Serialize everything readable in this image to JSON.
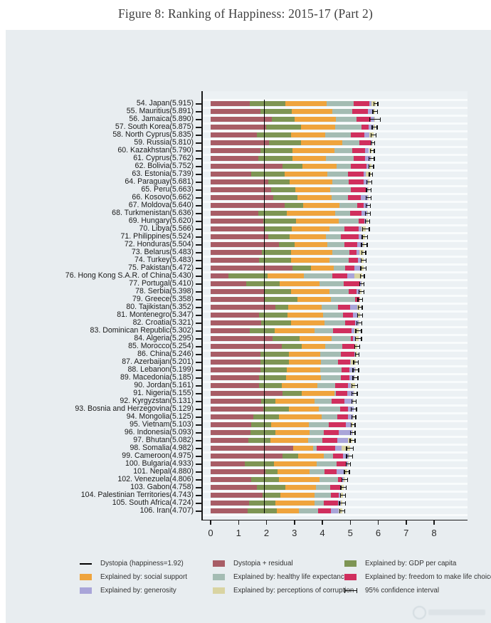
{
  "figure": {
    "title": "Figure 8: Ranking of Happiness: 2015-17 (Part 2)"
  },
  "chart_data": {
    "type": "bar",
    "orientation": "horizontal",
    "stacked": true,
    "title": "Figure 8: Ranking of Happiness: 2015-17 (Part 2)",
    "xlabel": "",
    "ylabel": "",
    "xlim": [
      0,
      8
    ],
    "x_ticks": [
      0,
      1,
      2,
      3,
      4,
      5,
      6,
      7,
      8
    ],
    "grid": "horizontal-row-stripes",
    "legend_position": "bottom",
    "dystopia_value": 1.92,
    "segment_names": [
      "Dystopia + residual",
      "Explained by: GDP per capita",
      "Explained by: social support",
      "Explained by: healthy life expectancy",
      "Explained by: freedom to make life choices",
      "Explained by: generosity",
      "Explained by: perceptions of corruption"
    ],
    "segment_colors": [
      "#a85d66",
      "#7e9554",
      "#efa43d",
      "#a4bcb3",
      "#d02f5e",
      "#a9a5d9",
      "#d9d4a2"
    ],
    "legend": [
      {
        "type": "line",
        "color": "#000000",
        "label": "Dystopia (happiness=1.92)"
      },
      {
        "type": "box",
        "color": "#a85d66",
        "label": "Dystopia + residual"
      },
      {
        "type": "box",
        "color": "#7e9554",
        "label": "Explained by: GDP per capita"
      },
      {
        "type": "box",
        "color": "#efa43d",
        "label": "Explained by: social support"
      },
      {
        "type": "box",
        "color": "#a4bcb3",
        "label": "Explained by: healthy life expectancy"
      },
      {
        "type": "box",
        "color": "#d02f5e",
        "label": "Explained by: freedom to make life choices"
      },
      {
        "type": "box",
        "color": "#a9a5d9",
        "label": "Explained by: generosity"
      },
      {
        "type": "box",
        "color": "#d9d4a2",
        "label": "Explained by: perceptions of corruption"
      },
      {
        "type": "ci",
        "color": "#111111",
        "label": "95% confidence interval"
      }
    ],
    "countries": [
      {
        "label": "54. Japan(5.915)",
        "total": 5.915,
        "segments": [
          1.389,
          1.294,
          1.462,
          0.988,
          0.553,
          0.079,
          0.15
        ],
        "ci": 0.07
      },
      {
        "label": "55. Mauritius(5.891)",
        "total": 5.891,
        "segments": [
          1.774,
          1.142,
          1.448,
          0.71,
          0.555,
          0.197,
          0.065
        ],
        "ci": 0.08
      },
      {
        "label": "56. Jamaica(5.890)",
        "total": 5.89,
        "segments": [
          2.184,
          0.819,
          1.493,
          0.716,
          0.522,
          0.128,
          0.028
        ],
        "ci": 0.19
      },
      {
        "label": "57. South Korea(5.875)",
        "total": 5.875,
        "segments": [
          1.98,
          1.266,
          1.204,
          0.955,
          0.244,
          0.175,
          0.051
        ],
        "ci": 0.09
      },
      {
        "label": "58. North Cyprus(5.835)",
        "total": 5.835,
        "segments": [
          1.658,
          1.229,
          1.211,
          0.909,
          0.495,
          0.179,
          0.154
        ],
        "ci": 0.09
      },
      {
        "label": "59. Russia(5.810)",
        "total": 5.81,
        "segments": [
          2.092,
          1.151,
          1.479,
          0.599,
          0.399,
          0.065,
          0.025
        ],
        "ci": 0.06
      },
      {
        "label": "60. Kazakhstan(5.790)",
        "total": 5.79,
        "segments": [
          1.777,
          1.143,
          1.516,
          0.631,
          0.454,
          0.148,
          0.121
        ],
        "ci": 0.07
      },
      {
        "label": "61. Cyprus(5.762)",
        "total": 5.762,
        "segments": [
          1.713,
          1.222,
          1.191,
          0.999,
          0.406,
          0.19,
          0.041
        ],
        "ci": 0.1
      },
      {
        "label": "62. Bolivia(5.752)",
        "total": 5.752,
        "segments": [
          2.575,
          0.714,
          1.224,
          0.508,
          0.571,
          0.097,
          0.063
        ],
        "ci": 0.08
      },
      {
        "label": "63. Estonia(5.739)",
        "total": 5.739,
        "segments": [
          1.457,
          1.2,
          1.532,
          0.737,
          0.553,
          0.086,
          0.174
        ],
        "ci": 0.06
      },
      {
        "label": "64. Paraguay(5.681)",
        "total": 5.681,
        "segments": [
          2.073,
          0.755,
          1.521,
          0.604,
          0.52,
          0.161,
          0.047
        ],
        "ci": 0.09
      },
      {
        "label": "65. Peru(5.663)",
        "total": 5.663,
        "segments": [
          2.173,
          0.863,
          1.249,
          0.735,
          0.53,
          0.083,
          0.03
        ],
        "ci": 0.08
      },
      {
        "label": "66. Kosovo(5.662)",
        "total": 5.662,
        "segments": [
          2.254,
          0.855,
          1.23,
          0.578,
          0.448,
          0.274,
          0.023
        ],
        "ci": 0.09
      },
      {
        "label": "67. Moldova(5.640)",
        "total": 5.64,
        "segments": [
          2.659,
          0.657,
          1.301,
          0.62,
          0.232,
          0.171,
          0.0
        ],
        "ci": 0.08
      },
      {
        "label": "68. Turkmenistan(5.636)",
        "total": 5.636,
        "segments": [
          1.704,
          1.024,
          1.719,
          0.541,
          0.418,
          0.202,
          0.028
        ],
        "ci": 0.09
      },
      {
        "label": "69. Hungary(5.620)",
        "total": 5.62,
        "segments": [
          1.887,
          1.171,
          1.536,
          0.71,
          0.199,
          0.081,
          0.036
        ],
        "ci": 0.08
      },
      {
        "label": "70. Libya(5.566)",
        "total": 5.566,
        "segments": [
          1.909,
          0.985,
          1.35,
          0.553,
          0.501,
          0.116,
          0.152
        ],
        "ci": 0.12
      },
      {
        "label": "71. Philippines(5.524)",
        "total": 5.524,
        "segments": [
          2.075,
          0.746,
          1.312,
          0.542,
          0.613,
          0.132,
          0.104
        ],
        "ci": 0.1
      },
      {
        "label": "72. Honduras(5.504)",
        "total": 5.504,
        "segments": [
          2.439,
          0.557,
          1.171,
          0.619,
          0.471,
          0.191,
          0.056
        ],
        "ci": 0.1
      },
      {
        "label": "73. Belarus(5.483)",
        "total": 5.483,
        "segments": [
          1.83,
          1.039,
          1.487,
          0.622,
          0.236,
          0.117,
          0.152
        ],
        "ci": 0.07
      },
      {
        "label": "74. Turkey(5.483)",
        "total": 5.483,
        "segments": [
          1.73,
          1.148,
          1.38,
          0.686,
          0.324,
          0.106,
          0.109
        ],
        "ci": 0.09
      },
      {
        "label": "75. Pakistan(5.472)",
        "total": 5.472,
        "segments": [
          2.938,
          0.652,
          0.81,
          0.424,
          0.334,
          0.216,
          0.098
        ],
        "ci": 0.1
      },
      {
        "label": "76. Hong Kong S.A.R. of China(5.430)",
        "total": 5.43,
        "segments": [
          0.644,
          1.405,
          1.29,
          1.03,
          0.524,
          0.246,
          0.291
        ],
        "ci": 0.07
      },
      {
        "label": "77. Portugal(5.410)",
        "total": 5.41,
        "segments": [
          1.275,
          1.188,
          1.429,
          0.884,
          0.562,
          0.055,
          0.017
        ],
        "ci": 0.08
      },
      {
        "label": "78. Serbia(5.398)",
        "total": 5.398,
        "segments": [
          1.904,
          0.975,
          1.369,
          0.685,
          0.288,
          0.134,
          0.043
        ],
        "ci": 0.09
      },
      {
        "label": "79. Greece(5.358)",
        "total": 5.358,
        "segments": [
          1.948,
          1.154,
          1.202,
          0.879,
          0.131,
          0.0,
          0.044
        ],
        "ci": 0.08
      },
      {
        "label": "80. Tajikistan(5.352)",
        "total": 5.352,
        "segments": [
          2.315,
          0.474,
          1.175,
          0.598,
          0.437,
          0.25,
          0.103
        ],
        "ci": 0.07
      },
      {
        "label": "81. Montenegro(5.347)",
        "total": 5.347,
        "segments": [
          1.743,
          1.014,
          1.28,
          0.702,
          0.367,
          0.153,
          0.088
        ],
        "ci": 0.09
      },
      {
        "label": "82. Croatia(5.321)",
        "total": 5.321,
        "segments": [
          1.819,
          1.057,
          1.191,
          0.741,
          0.373,
          0.12,
          0.02
        ],
        "ci": 0.09
      },
      {
        "label": "83. Dominican Republic(5.302)",
        "total": 5.302,
        "segments": [
          1.398,
          0.895,
          1.437,
          0.654,
          0.665,
          0.11,
          0.143
        ],
        "ci": 0.1
      },
      {
        "label": "84. Algeria(5.295)",
        "total": 5.295,
        "segments": [
          2.208,
          0.979,
          1.154,
          0.687,
          0.077,
          0.055,
          0.135
        ],
        "ci": 0.11
      },
      {
        "label": "85. Morocco(5.254)",
        "total": 5.254,
        "segments": [
          2.543,
          0.722,
          0.843,
          0.598,
          0.44,
          0.032,
          0.076
        ],
        "ci": 0.09
      },
      {
        "label": "86. China(5.246)",
        "total": 5.246,
        "segments": [
          1.771,
          1.029,
          1.125,
          0.741,
          0.472,
          0.027,
          0.081
        ],
        "ci": 0.06
      },
      {
        "label": "87. Azerbaijan(5.201)",
        "total": 5.201,
        "segments": [
          1.772,
          1.024,
          1.161,
          0.603,
          0.43,
          0.035,
          0.176
        ],
        "ci": 0.08
      },
      {
        "label": "88. Lebanon(5.199)",
        "total": 5.199,
        "segments": [
          1.771,
          0.965,
          1.185,
          0.755,
          0.288,
          0.21,
          0.025
        ],
        "ci": 0.1
      },
      {
        "label": "89. Macedonia(5.185)",
        "total": 5.185,
        "segments": [
          1.745,
          0.959,
          1.239,
          0.709,
          0.317,
          0.177,
          0.039
        ],
        "ci": 0.09
      },
      {
        "label": "90. Jordan(5.161)",
        "total": 5.161,
        "segments": [
          1.725,
          0.822,
          1.265,
          0.645,
          0.462,
          0.107,
          0.135
        ],
        "ci": 0.1
      },
      {
        "label": "91. Nigeria(5.155)",
        "total": 5.155,
        "segments": [
          2.569,
          0.689,
          1.172,
          0.043,
          0.426,
          0.215,
          0.041
        ],
        "ci": 0.09
      },
      {
        "label": "92. Kyrgyzstan(5.131)",
        "total": 5.131,
        "segments": [
          1.798,
          0.53,
          1.4,
          0.591,
          0.469,
          0.3,
          0.043
        ],
        "ci": 0.08
      },
      {
        "label": "93. Bosnia and Herzegovina(5.129)",
        "total": 5.129,
        "segments": [
          1.882,
          0.915,
          1.078,
          0.758,
          0.28,
          0.216,
          0.0
        ],
        "ci": 0.09
      },
      {
        "label": "94. Mongolia(5.125)",
        "total": 5.125,
        "segments": [
          1.538,
          0.914,
          1.517,
          0.575,
          0.361,
          0.188,
          0.032
        ],
        "ci": 0.07
      },
      {
        "label": "95. Vietnam(5.103)",
        "total": 5.103,
        "segments": [
          1.447,
          0.715,
          1.365,
          0.702,
          0.618,
          0.177,
          0.079
        ],
        "ci": 0.07
      },
      {
        "label": "96. Indonesia(5.093)",
        "total": 5.093,
        "segments": [
          1.417,
          0.899,
          1.215,
          0.522,
          0.538,
          0.484,
          0.018
        ],
        "ci": 0.08
      },
      {
        "label": "97. Bhutan(5.082)",
        "total": 5.082,
        "segments": [
          1.348,
          0.796,
          1.335,
          0.527,
          0.541,
          0.364,
          0.171
        ],
        "ci": 0.09
      },
      {
        "label": "98. Somalia(4.982)",
        "total": 4.982,
        "segments": [
          2.961,
          0.0,
          0.712,
          0.115,
          0.674,
          0.238,
          0.282
        ],
        "ci": 0.12
      },
      {
        "label": "99. Cameroon(4.975)",
        "total": 4.975,
        "segments": [
          2.58,
          0.549,
          0.91,
          0.331,
          0.381,
          0.187,
          0.037
        ],
        "ci": 0.11
      },
      {
        "label": "100. Bulgaria(4.933)",
        "total": 4.933,
        "segments": [
          1.22,
          1.054,
          1.515,
          0.712,
          0.359,
          0.064,
          0.009
        ],
        "ci": 0.08
      },
      {
        "label": "101. Nepal(4.880)",
        "total": 4.88,
        "segments": [
          1.958,
          0.427,
          1.156,
          0.526,
          0.439,
          0.285,
          0.089
        ],
        "ci": 0.09
      },
      {
        "label": "102. Venezuela(4.806)",
        "total": 4.806,
        "segments": [
          1.443,
          0.996,
          1.469,
          0.657,
          0.133,
          0.056,
          0.052
        ],
        "ci": 0.1
      },
      {
        "label": "103. Gabon(4.758)",
        "total": 4.758,
        "segments": [
          1.653,
          1.034,
          1.094,
          0.492,
          0.37,
          0.027,
          0.088
        ],
        "ci": 0.1
      },
      {
        "label": "104. Palestinian Territories(4.743)",
        "total": 4.743,
        "segments": [
          1.854,
          0.642,
          1.217,
          0.602,
          0.266,
          0.086,
          0.076
        ],
        "ci": 0.09
      },
      {
        "label": "105. South Africa(4.724)",
        "total": 4.724,
        "segments": [
          1.369,
          0.94,
          1.41,
          0.33,
          0.516,
          0.103,
          0.056
        ],
        "ci": 0.11
      },
      {
        "label": "106. Iran(4.707)",
        "total": 4.707,
        "segments": [
          1.32,
          1.059,
          0.771,
          0.691,
          0.459,
          0.282,
          0.125
        ],
        "ci": 0.09
      }
    ]
  },
  "colors": {
    "panel_background": "#e8edf0",
    "plot_background": "#ecf1f4",
    "grid_stripe": "#f8fbfc",
    "axis": "#1a1a1a",
    "dystopia_line": "#000000"
  }
}
